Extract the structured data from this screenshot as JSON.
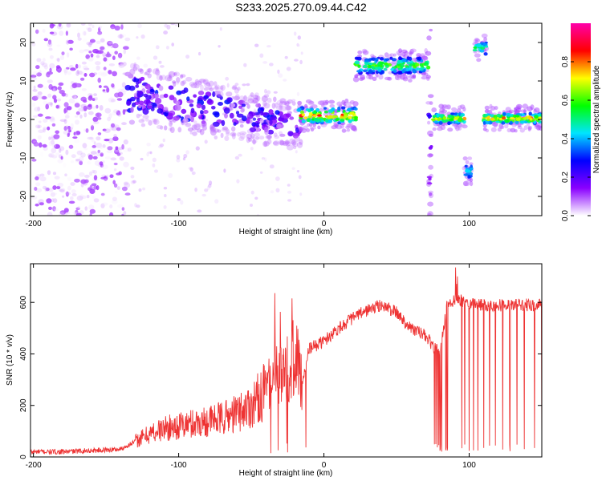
{
  "figure": {
    "title": "S233.2025.270.09.44.C42"
  },
  "chart_data": [
    {
      "type": "heatmap",
      "xlabel": "Height of straight line (km)",
      "ylabel": "Frequency (Hz)",
      "xlim": [
        -202,
        150
      ],
      "ylim": [
        -25,
        25
      ],
      "xticks": [
        -200,
        -100,
        0,
        100
      ],
      "yticks": [
        -20,
        -10,
        0,
        10,
        20
      ],
      "colorbar": {
        "label": "Normalized spectral amplitude",
        "range": [
          0,
          1
        ],
        "ticks": [
          0.0,
          0.2,
          0.4,
          0.6,
          0.8
        ],
        "tick_labels": [
          "0.0",
          "0.2",
          "0.4",
          "0.6",
          "0.8"
        ],
        "colormap": [
          "#ffffff",
          "#8a00ff",
          "#0000ff",
          "#00e5ff",
          "#00ff00",
          "#ffff00",
          "#ff0000",
          "#ff00aa"
        ]
      },
      "regions": [
        {
          "x": [
            -200,
            -135
          ],
          "freq": [
            -25,
            25
          ],
          "amplitude": [
            0.0,
            0.1
          ],
          "description": "scattered faint speckle"
        },
        {
          "x": [
            -135,
            -15
          ],
          "freq_start": [
            2,
            12
          ],
          "freq_end": [
            -5,
            1
          ],
          "amplitude": [
            0.05,
            0.3
          ],
          "description": "dispersive band"
        },
        {
          "x": [
            -18,
            22
          ],
          "freq": [
            -1,
            3
          ],
          "amplitude": [
            0.3,
            0.9
          ],
          "description": "narrow tone near 0 Hz"
        },
        {
          "x": [
            22,
            72
          ],
          "freq": [
            12,
            16
          ],
          "amplitude": [
            0.25,
            0.7
          ],
          "description": "bar near 14 Hz"
        },
        {
          "x": [
            72,
            74
          ],
          "freq": [
            -25,
            25
          ],
          "amplitude": [
            0.05,
            0.3
          ],
          "description": "vertical stripe"
        },
        {
          "x": [
            75,
            97
          ],
          "freq": [
            -1,
            1.5
          ],
          "amplitude": [
            0.3,
            0.8
          ],
          "description": "tone near 0 Hz"
        },
        {
          "x": [
            97,
            102
          ],
          "freq": [
            -15,
            -12
          ],
          "amplitude": [
            0.3,
            0.5
          ],
          "description": "spot near -14 Hz"
        },
        {
          "x": [
            104,
            112
          ],
          "freq": [
            17,
            20
          ],
          "amplitude": [
            0.3,
            0.6
          ],
          "description": "spot near 18 Hz"
        },
        {
          "x": [
            110,
            150
          ],
          "freq": [
            -1,
            1.5
          ],
          "amplitude": [
            0.3,
            0.9
          ],
          "description": "tone near 0 Hz"
        }
      ]
    },
    {
      "type": "line",
      "xlabel": "Height of straight line (km)",
      "ylabel": "SNR (10 * v/v)",
      "xlim": [
        -202,
        150
      ],
      "ylim": [
        0,
        750
      ],
      "xticks": [
        -200,
        -100,
        0,
        100
      ],
      "yticks": [
        0,
        200,
        400,
        600
      ],
      "grid": false,
      "color": "#ee3333",
      "series": [
        {
          "x": [
            -200,
            -180,
            -160,
            -140,
            -130,
            -120,
            -110,
            -100,
            -90,
            -80,
            -70,
            -60,
            -50,
            -40,
            -30,
            -20,
            -15,
            -10,
            0,
            10,
            20,
            30,
            40,
            50,
            60,
            70,
            75,
            80,
            85,
            90,
            100,
            110,
            120,
            130,
            140,
            150
          ],
          "values": [
            20,
            20,
            25,
            30,
            60,
            90,
            110,
            120,
            130,
            140,
            150,
            170,
            200,
            260,
            330,
            380,
            300,
            420,
            450,
            500,
            540,
            570,
            590,
            560,
            500,
            470,
            430,
            400,
            600,
            610,
            600,
            590,
            590,
            590,
            590,
            590
          ]
        }
      ],
      "dropouts_x": [
        76,
        77,
        78,
        79,
        80,
        81,
        84,
        85,
        95,
        97,
        100,
        103,
        106,
        110,
        114,
        118,
        123,
        128,
        133,
        138,
        145,
        150
      ]
    }
  ]
}
